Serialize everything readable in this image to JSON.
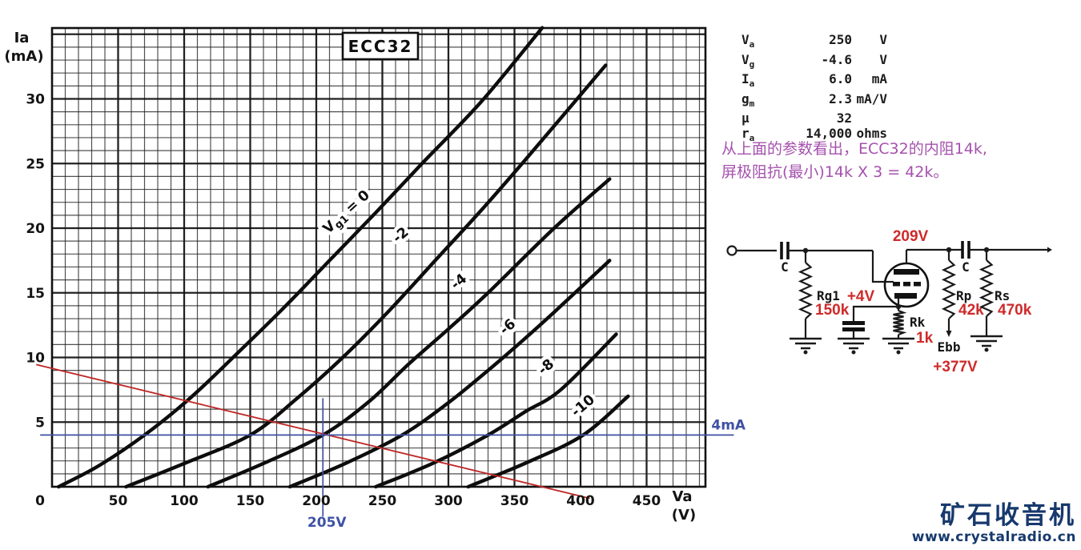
{
  "colors": {
    "ink": "#141414",
    "annotation_red": "#cf2a2a",
    "load_line_red": "#bf2626",
    "op_blue": "#3e51a4",
    "note_purple": "#a551ae",
    "watermark_navy": "#17396d"
  },
  "chart": {
    "y_axis_line1": "Ia",
    "y_axis_line2": "(mA)",
    "x_axis_line1": "Va",
    "x_axis_line2": "(V)"
  },
  "chart_data": {
    "type": "line",
    "title": "ECC32",
    "xlabel": "Va (V)",
    "ylabel": "Ia (mA)",
    "xlim": [
      0,
      494
    ],
    "ylim": [
      0,
      35.5
    ],
    "x_ticks": [
      0,
      50,
      100,
      150,
      200,
      250,
      300,
      350,
      400,
      450
    ],
    "y_ticks": [
      5,
      10,
      15,
      20,
      25,
      30
    ],
    "grid_step_v": 10,
    "grid_step_ma": 1,
    "series": [
      {
        "name": "Vg1 = 0",
        "label": {
          "pre": "V",
          "sub": "g1",
          "post": " = 0"
        },
        "label_pos": {
          "v": 225,
          "i": 21.0,
          "rot": -42
        },
        "points": [
          [
            5,
            0
          ],
          [
            35,
            1.6
          ],
          [
            70,
            4
          ],
          [
            105,
            6.9
          ],
          [
            140,
            10.3
          ],
          [
            175,
            13.8
          ],
          [
            210,
            17.5
          ],
          [
            245,
            21.2
          ],
          [
            280,
            25
          ],
          [
            325,
            29.8
          ],
          [
            371,
            35.5
          ]
        ]
      },
      {
        "name": "-2",
        "label": {
          "post": "-2"
        },
        "label_pos": {
          "v": 266,
          "i": 19.2,
          "rot": -40
        },
        "points": [
          [
            56,
            0
          ],
          [
            100,
            1.8
          ],
          [
            150,
            4
          ],
          [
            185,
            6.8
          ],
          [
            220,
            10
          ],
          [
            255,
            13.6
          ],
          [
            290,
            17.5
          ],
          [
            325,
            21.4
          ],
          [
            360,
            25.5
          ],
          [
            419,
            32.6
          ]
        ]
      },
      {
        "name": "-4",
        "label": {
          "post": "-4"
        },
        "label_pos": {
          "v": 310,
          "i": 15.6,
          "rot": -40
        },
        "points": [
          [
            118,
            0
          ],
          [
            160,
            1.8
          ],
          [
            205,
            4
          ],
          [
            240,
            6.6
          ],
          [
            270,
            9.5
          ],
          [
            300,
            12.2
          ],
          [
            330,
            15
          ],
          [
            380,
            20
          ],
          [
            422,
            23.8
          ]
        ]
      },
      {
        "name": "-6",
        "label": {
          "post": "-6"
        },
        "label_pos": {
          "v": 347,
          "i": 12.1,
          "rot": -40
        },
        "points": [
          [
            180,
            0
          ],
          [
            222,
            1.8
          ],
          [
            265,
            4
          ],
          [
            300,
            6.5
          ],
          [
            330,
            9
          ],
          [
            355,
            11.2
          ],
          [
            380,
            13.5
          ],
          [
            422,
            17.5
          ]
        ]
      },
      {
        "name": "-8",
        "label": {
          "post": "-8"
        },
        "label_pos": {
          "v": 376,
          "i": 9.0,
          "rot": -40
        },
        "points": [
          [
            245,
            0
          ],
          [
            288,
            1.8
          ],
          [
            330,
            4
          ],
          [
            358,
            5.8
          ],
          [
            385,
            7.5
          ],
          [
            427,
            11.8
          ]
        ]
      },
      {
        "name": "-10",
        "label": {
          "post": "-10"
        },
        "label_pos": {
          "v": 404,
          "i": 6.0,
          "rot": -40
        },
        "points": [
          [
            315,
            0
          ],
          [
            360,
            1.9
          ],
          [
            402,
            4
          ],
          [
            436,
            7.0
          ]
        ]
      }
    ],
    "load_line": {
      "color": "#bf2626",
      "points": [
        [
          -12,
          9.45
        ],
        [
          407,
          -0.9
        ]
      ]
    },
    "operating_point": {
      "v": 205,
      "i": 4,
      "v_label": "205V",
      "i_label": "4mA",
      "color": "#3e51a4",
      "h_extent_v": [
        -9,
        516
      ],
      "v_extent_i": [
        6.85,
        -2.3
      ]
    },
    "legend_position": "on-curve",
    "grid": true
  },
  "params": {
    "rows": [
      {
        "sym": "V",
        "sub": "a",
        "value": "250",
        "unit": "V"
      },
      {
        "sym": "V",
        "sub": "g",
        "value": "-4.6",
        "unit": "V"
      },
      {
        "sym": "I",
        "sub": "a",
        "value": "6.0",
        "unit": "mA"
      },
      {
        "sym": "g",
        "sub": "m",
        "value": "2.3",
        "unit": "mA/V"
      },
      {
        "sym": "μ",
        "sub": "",
        "value": "32",
        "unit": ""
      },
      {
        "sym": "r",
        "sub": "a",
        "value": "14,000",
        "unit": "ohms"
      }
    ]
  },
  "note": {
    "line1": "从上面的参数看出，ECC32的内阻14k,",
    "line2": "屏极阻抗(最小)14k X 3 = 42k。"
  },
  "circuit": {
    "input_cap_label": "C",
    "output_cap_label": "C",
    "rg1_name": "Rg1",
    "rg1_value": "150k",
    "cathode_voltage": "+4V",
    "rk_name": "Rk",
    "rk_value": "1k",
    "plate_voltage": "209V",
    "rp_name": "Rp",
    "rp_value": "42k",
    "rs_name": "Rs",
    "rs_value": "470k",
    "supply_name": "Ebb",
    "supply_voltage": "+377V"
  },
  "watermark": {
    "title": "矿石收音机",
    "url": "www.crystalradio.cn"
  }
}
